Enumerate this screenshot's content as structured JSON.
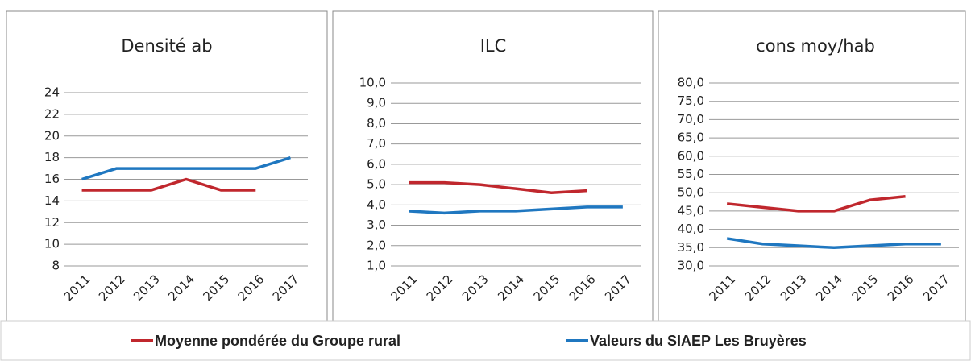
{
  "legend": [
    {
      "name": "Moyenne pondérée du Groupe rural",
      "color": "#c0272d"
    },
    {
      "name": "Valeurs du SIAEP Les Bruyères",
      "color": "#1f77c0"
    }
  ],
  "chart_data": [
    {
      "type": "line",
      "title": "Densité ab",
      "categories": [
        "2011",
        "2012",
        "2013",
        "2014",
        "2015",
        "2016",
        "2017"
      ],
      "series": [
        {
          "color": "#c0272d",
          "values": [
            15,
            15,
            15,
            16,
            15,
            15,
            null
          ]
        },
        {
          "color": "#1f77c0",
          "values": [
            16,
            17,
            17,
            17,
            17,
            17,
            18
          ]
        }
      ],
      "ylim": [
        8,
        24
      ],
      "yticks": [
        8,
        10,
        12,
        14,
        16,
        18,
        20,
        22,
        24
      ],
      "grid": true
    },
    {
      "type": "line",
      "title": "ILC",
      "categories": [
        "2011",
        "2012",
        "2013",
        "2014",
        "2015",
        "2016",
        "2017"
      ],
      "series": [
        {
          "color": "#c0272d",
          "values": [
            5.1,
            5.1,
            5.0,
            4.8,
            4.6,
            4.7,
            null
          ]
        },
        {
          "color": "#1f77c0",
          "values": [
            3.7,
            3.6,
            3.7,
            3.7,
            3.8,
            3.9,
            3.9
          ]
        }
      ],
      "ylim": [
        1,
        10
      ],
      "yticks": [
        {
          "value": 1,
          "label": "1,0"
        },
        {
          "value": 2,
          "label": "2,0"
        },
        {
          "value": 3,
          "label": "3,0"
        },
        {
          "value": 4,
          "label": "4,0"
        },
        {
          "value": 5,
          "label": "5,0"
        },
        {
          "value": 6,
          "label": "6,0"
        },
        {
          "value": 7,
          "label": "7,0"
        },
        {
          "value": 8,
          "label": "8,0"
        },
        {
          "value": 9,
          "label": "9,0"
        },
        {
          "value": 10,
          "label": "10,0"
        }
      ],
      "grid": true
    },
    {
      "type": "line",
      "title": "cons moy/hab",
      "categories": [
        "2011",
        "2012",
        "2013",
        "2014",
        "2015",
        "2016",
        "2017"
      ],
      "series": [
        {
          "color": "#c0272d",
          "values": [
            47,
            46,
            45,
            45,
            48,
            49,
            null
          ]
        },
        {
          "color": "#1f77c0",
          "values": [
            37.5,
            36,
            35.5,
            35,
            35.5,
            36,
            36
          ]
        }
      ],
      "ylim": [
        30,
        80
      ],
      "yticks": [
        {
          "value": 30,
          "label": "30,0"
        },
        {
          "value": 35,
          "label": "35,0"
        },
        {
          "value": 40,
          "label": "40,0"
        },
        {
          "value": 45,
          "label": "45,0"
        },
        {
          "value": 50,
          "label": "50,0"
        },
        {
          "value": 55,
          "label": "55,0"
        },
        {
          "value": 60,
          "label": "60,0"
        },
        {
          "value": 65,
          "label": "65,0"
        },
        {
          "value": 70,
          "label": "70,0"
        },
        {
          "value": 75,
          "label": "75,0"
        },
        {
          "value": 80,
          "label": "80,0"
        }
      ],
      "grid": true
    }
  ]
}
